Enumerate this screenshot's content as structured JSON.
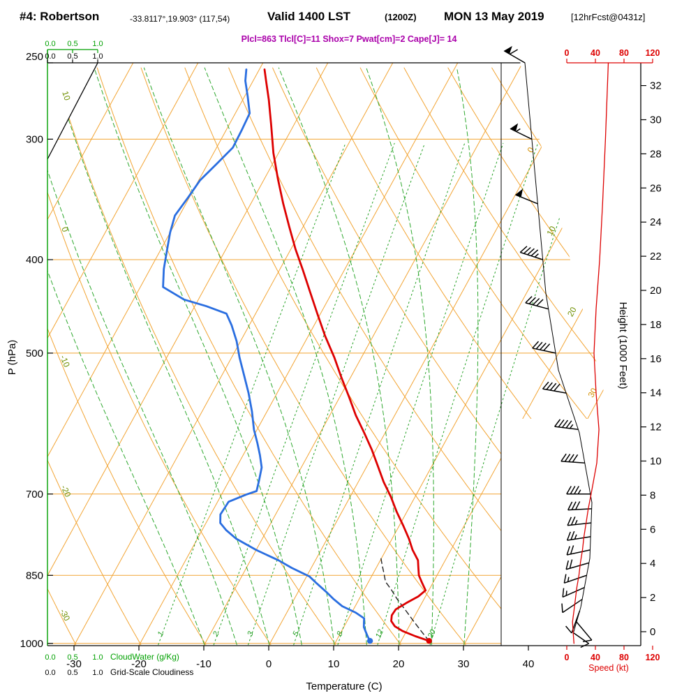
{
  "header": {
    "station": "#4: Robertson",
    "coords": "-33.8117°,19.903° (117,54)",
    "valid_label": "Valid 1400 LST",
    "valid_z": "(1200Z)",
    "valid_date": "MON 13 May 2019",
    "fcst": "[12hrFcst@0431z]",
    "params": "Plcl=863 Tlcl[C]=11 Shox=7 Pwat[cm]=2 Cape[J]= 14"
  },
  "axes": {
    "pressure_label": "P (hPa)",
    "pressure_ticks": [
      250,
      300,
      400,
      500,
      700,
      850,
      1000
    ],
    "temp_label": "Temperature (C)",
    "temp_ticks": [
      -30,
      -20,
      -10,
      0,
      10,
      20,
      30,
      40
    ],
    "height_label": "Height (1000 Feet)",
    "height_ticks": [
      0,
      2,
      4,
      6,
      8,
      10,
      12,
      14,
      16,
      18,
      20,
      22,
      24,
      26,
      28,
      30,
      32
    ],
    "speed_label": "Speed (kt)",
    "speed_ticks": [
      0,
      40,
      80,
      120
    ],
    "cloudwater_label": "CloudWater (g/Kg)",
    "cloudwater_ticks": [
      "0.0",
      "0.5",
      "1.0"
    ],
    "cloudiness_label": "Grid-Scale Cloudiness",
    "cloudiness_ticks": [
      "0.0",
      "0.5",
      "1.0"
    ]
  },
  "chart_data": {
    "type": "skewt-log-p-sounding",
    "pressure_range_hpa": [
      250,
      1000
    ],
    "temp_axis_range_c": [
      -30,
      40
    ],
    "height_axis_range_kft": [
      0,
      32
    ],
    "speed_axis_range_kt": [
      0,
      120
    ],
    "isotherm_labels": [
      0,
      10,
      20,
      30
    ],
    "dry_adiabat_labels": [
      10,
      0,
      -10,
      -20,
      -30
    ],
    "mixing_ratio_labels": [
      1,
      2,
      3,
      5,
      8,
      12,
      20
    ],
    "surface": {
      "pressure": 994,
      "temp": 24.3,
      "dewpoint": 15.2
    },
    "temperature_profile": [
      [
        994,
        24.3
      ],
      [
        983,
        21.8
      ],
      [
        971,
        19.4
      ],
      [
        960,
        17.8
      ],
      [
        948,
        16.8
      ],
      [
        935,
        16.4
      ],
      [
        922,
        16.5
      ],
      [
        908,
        17.6
      ],
      [
        894,
        18.9
      ],
      [
        881,
        19.5
      ],
      [
        865,
        18.3
      ],
      [
        850,
        17.2
      ],
      [
        835,
        16.5
      ],
      [
        820,
        15.8
      ],
      [
        800,
        14.1
      ],
      [
        779,
        12.6
      ],
      [
        756,
        10.7
      ],
      [
        730,
        8.4
      ],
      [
        705,
        6.3
      ],
      [
        680,
        3.9
      ],
      [
        655,
        1.7
      ],
      [
        630,
        -0.6
      ],
      [
        605,
        -3.2
      ],
      [
        580,
        -6.0
      ],
      [
        555,
        -8.6
      ],
      [
        530,
        -11.4
      ],
      [
        505,
        -14.2
      ],
      [
        480,
        -17.4
      ],
      [
        455,
        -20.5
      ],
      [
        430,
        -23.7
      ],
      [
        410,
        -26.4
      ],
      [
        390,
        -29.3
      ],
      [
        370,
        -32.1
      ],
      [
        350,
        -35.0
      ],
      [
        330,
        -37.9
      ],
      [
        310,
        -40.8
      ],
      [
        290,
        -43.5
      ],
      [
        273,
        -46.0
      ],
      [
        261,
        -48.0
      ],
      [
        254,
        -49.2
      ]
    ],
    "dewpoint_profile": [
      [
        994,
        15.2
      ],
      [
        984,
        14.5
      ],
      [
        973,
        13.8
      ],
      [
        962,
        13.1
      ],
      [
        951,
        12.7
      ],
      [
        942,
        12.4
      ],
      [
        929,
        10.6
      ],
      [
        915,
        8.0
      ],
      [
        899,
        6.0
      ],
      [
        884,
        4.3
      ],
      [
        867,
        2.2
      ],
      [
        852,
        0.4
      ],
      [
        835,
        -3.0
      ],
      [
        820,
        -5.7
      ],
      [
        800,
        -10.0
      ],
      [
        779,
        -14.0
      ],
      [
        763,
        -16.3
      ],
      [
        750,
        -17.8
      ],
      [
        735,
        -18.5
      ],
      [
        713,
        -18.3
      ],
      [
        701,
        -16.2
      ],
      [
        695,
        -14.9
      ],
      [
        678,
        -15.4
      ],
      [
        657,
        -16.1
      ],
      [
        638,
        -17.4
      ],
      [
        620,
        -18.8
      ],
      [
        600,
        -20.5
      ],
      [
        575,
        -22.3
      ],
      [
        550,
        -24.4
      ],
      [
        527,
        -26.6
      ],
      [
        505,
        -28.8
      ],
      [
        486,
        -30.6
      ],
      [
        468,
        -32.7
      ],
      [
        455,
        -34.5
      ],
      [
        447,
        -38.2
      ],
      [
        440,
        -42.2
      ],
      [
        427,
        -46.5
      ],
      [
        409,
        -47.9
      ],
      [
        391,
        -49.0
      ],
      [
        375,
        -50.0
      ],
      [
        360,
        -50.7
      ],
      [
        345,
        -50.2
      ],
      [
        331,
        -49.8
      ],
      [
        318,
        -48.6
      ],
      [
        306,
        -47.5
      ],
      [
        294,
        -47.6
      ],
      [
        282,
        -47.8
      ],
      [
        271,
        -49.5
      ],
      [
        261,
        -51.2
      ],
      [
        254,
        -52.0
      ]
    ],
    "parcel_profile": [
      [
        994,
        24.3
      ],
      [
        975,
        22.6
      ],
      [
        950,
        20.4
      ],
      [
        925,
        18.2
      ],
      [
        900,
        15.9
      ],
      [
        880,
        14.2
      ],
      [
        863,
        12.6
      ],
      [
        845,
        11.6
      ],
      [
        828,
        10.6
      ],
      [
        812,
        9.7
      ]
    ],
    "wind_profile": [
      [
        250,
        300,
        58
      ],
      [
        300,
        296,
        54
      ],
      [
        350,
        292,
        50
      ],
      [
        400,
        288,
        46
      ],
      [
        450,
        285,
        41
      ],
      [
        500,
        282,
        38
      ],
      [
        550,
        280,
        41
      ],
      [
        600,
        277,
        45
      ],
      [
        650,
        274,
        42
      ],
      [
        700,
        270,
        34
      ],
      [
        725,
        267,
        30
      ],
      [
        750,
        264,
        27
      ],
      [
        775,
        261,
        24
      ],
      [
        800,
        258,
        22
      ],
      [
        825,
        254,
        19
      ],
      [
        850,
        251,
        17
      ],
      [
        875,
        246,
        14
      ],
      [
        900,
        236,
        12
      ],
      [
        925,
        200,
        10
      ],
      [
        950,
        140,
        8
      ],
      [
        975,
        125,
        9
      ],
      [
        1000,
        115,
        10
      ]
    ],
    "colors": {
      "temperature": "#dd0000",
      "dewpoint": "#2a6ee0",
      "grid": "#f2a433",
      "moist": "#2ea82e",
      "mixing": "#22a022",
      "axis_green": "#00a000",
      "speed": "#dd0000",
      "params": "#aa00aa",
      "parcel": "#222222",
      "diag_label_green": "#6f8f00",
      "diag_label_orange": "#d49000"
    }
  }
}
